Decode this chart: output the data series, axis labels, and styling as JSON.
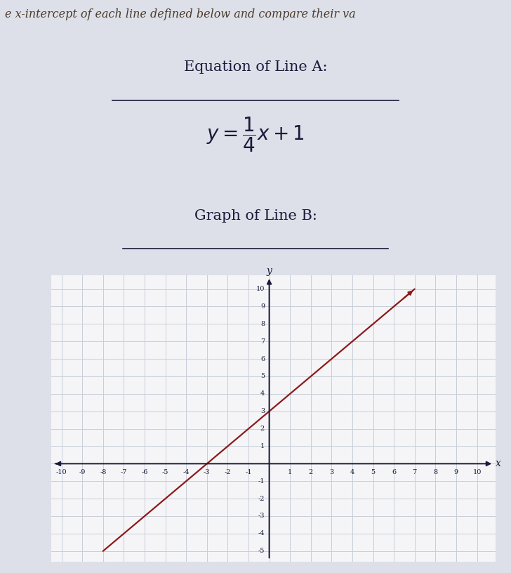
{
  "header_text": "e x-intercept of each line defined below and compare their va",
  "line_a_label": "Equation of Line A:",
  "line_b_label": "Graph of Line B:",
  "line_b_slope": 1,
  "line_b_intercept": 3,
  "x_min": -10,
  "x_max": 10,
  "y_min": -5,
  "y_max": 10,
  "grid_color": "#c8cdd8",
  "line_color": "#8b1a1a",
  "axis_color": "#1a1a3a",
  "text_color": "#1a1a3a",
  "bg_color_top": "#dde0e8",
  "bg_color_graph": "#f5f5f8",
  "header_color": "#4a3a2a",
  "underline_color": "#1a1a3a"
}
